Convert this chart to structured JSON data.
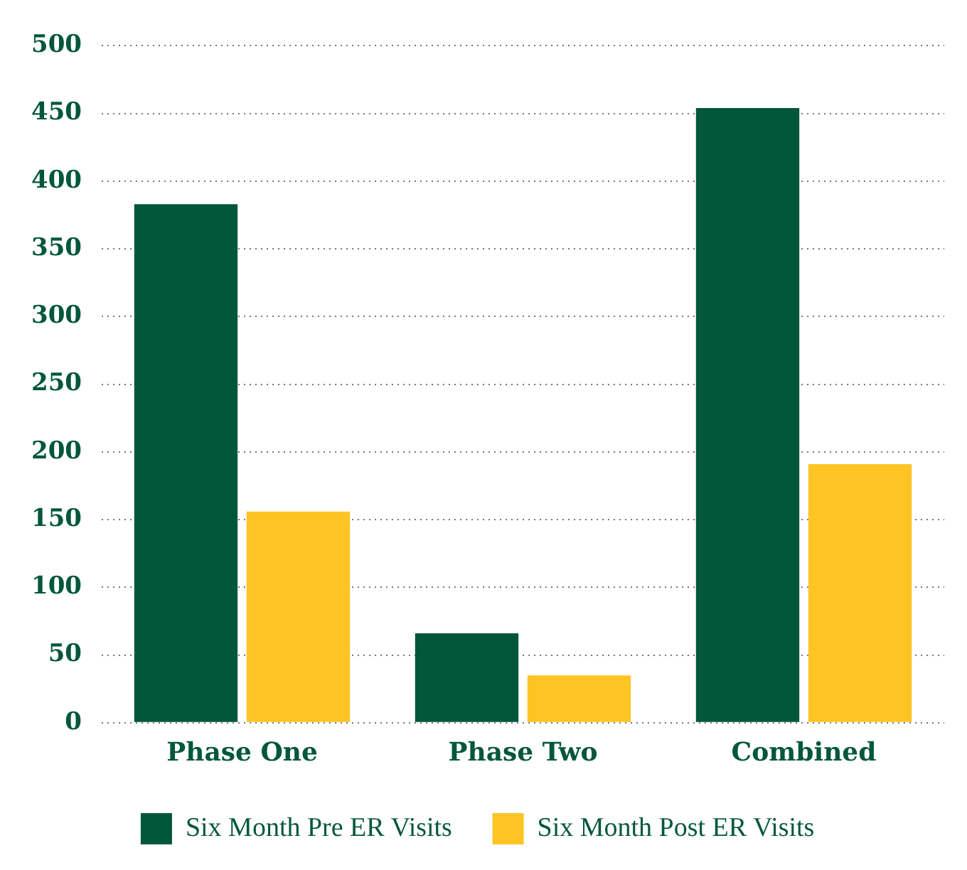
{
  "chart_data": {
    "type": "bar",
    "categories": [
      "Phase One",
      "Phase Two",
      "Combined"
    ],
    "series": [
      {
        "name": "Six Month Pre ER Visits",
        "color": "#02573a",
        "values": [
          383,
          66,
          454
        ]
      },
      {
        "name": "Six Month Post ER Visits",
        "color": "#fdc424",
        "values": [
          156,
          35,
          191
        ]
      }
    ],
    "ylim": [
      0,
      500
    ],
    "yticks": [
      0,
      50,
      100,
      150,
      200,
      250,
      300,
      350,
      400,
      450,
      500
    ],
    "grid": "y",
    "legend": "bottom"
  }
}
